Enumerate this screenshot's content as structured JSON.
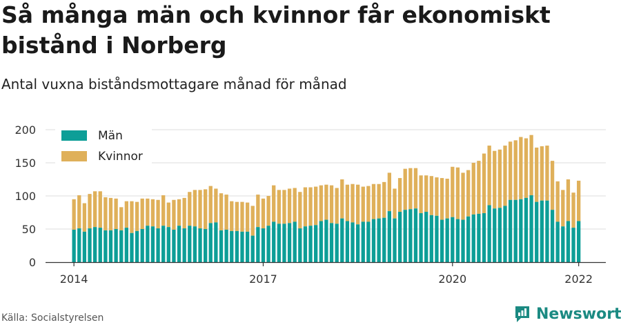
{
  "title": "Så många män och kvinnor får ekonomiskt bistånd i Norberg",
  "subtitle": "Antal vuxna biståndsmottagare månad för månad",
  "source": "Källa: Socialstyrelsen",
  "brand": "Newsworthy",
  "colors": {
    "man": "#0d9e97",
    "kvinnor": "#dfb05a",
    "grid": "#dddddd",
    "axis": "#333333"
  },
  "chart_data": {
    "type": "bar",
    "stacked": true,
    "ylim": [
      0,
      200
    ],
    "yticks": [
      0,
      50,
      100,
      150,
      200
    ],
    "xticks": [
      {
        "label": "2014",
        "index": 0
      },
      {
        "label": "2017",
        "index": 36
      },
      {
        "label": "2020",
        "index": 72
      },
      {
        "label": "2022",
        "index": 96
      }
    ],
    "legend": {
      "position": "top-left",
      "items": [
        "Män",
        "Kvinnor"
      ]
    },
    "categories": [
      "2014-01",
      "2014-02",
      "2014-03",
      "2014-04",
      "2014-05",
      "2014-06",
      "2014-07",
      "2014-08",
      "2014-09",
      "2014-10",
      "2014-11",
      "2014-12",
      "2015-01",
      "2015-02",
      "2015-03",
      "2015-04",
      "2015-05",
      "2015-06",
      "2015-07",
      "2015-08",
      "2015-09",
      "2015-10",
      "2015-11",
      "2015-12",
      "2016-01",
      "2016-02",
      "2016-03",
      "2016-04",
      "2016-05",
      "2016-06",
      "2016-07",
      "2016-08",
      "2016-09",
      "2016-10",
      "2016-11",
      "2016-12",
      "2017-01",
      "2017-02",
      "2017-03",
      "2017-04",
      "2017-05",
      "2017-06",
      "2017-07",
      "2017-08",
      "2017-09",
      "2017-10",
      "2017-11",
      "2017-12",
      "2018-01",
      "2018-02",
      "2018-03",
      "2018-04",
      "2018-05",
      "2018-06",
      "2018-07",
      "2018-08",
      "2018-09",
      "2018-10",
      "2018-11",
      "2018-12",
      "2019-01",
      "2019-02",
      "2019-03",
      "2019-04",
      "2019-05",
      "2019-06",
      "2019-07",
      "2019-08",
      "2019-09",
      "2019-10",
      "2019-11",
      "2019-12",
      "2020-01",
      "2020-02",
      "2020-03",
      "2020-04",
      "2020-05",
      "2020-06",
      "2020-07",
      "2020-08",
      "2020-09",
      "2020-10",
      "2020-11",
      "2020-12",
      "2021-01",
      "2021-02",
      "2021-03",
      "2021-04",
      "2021-05",
      "2021-06",
      "2021-07",
      "2021-08",
      "2021-09",
      "2021-10",
      "2021-11",
      "2021-12",
      "2022-01"
    ],
    "series": [
      {
        "name": "Män",
        "values": [
          49,
          51,
          46,
          51,
          53,
          52,
          48,
          48,
          50,
          48,
          52,
          44,
          47,
          50,
          55,
          54,
          51,
          55,
          53,
          49,
          55,
          51,
          55,
          54,
          51,
          50,
          59,
          60,
          48,
          49,
          47,
          47,
          46,
          46,
          40,
          53,
          51,
          55,
          61,
          58,
          58,
          59,
          61,
          51,
          54,
          55,
          56,
          62,
          64,
          59,
          58,
          66,
          62,
          60,
          57,
          61,
          61,
          65,
          66,
          67,
          77,
          66,
          76,
          79,
          80,
          81,
          74,
          76,
          71,
          70,
          64,
          66,
          68,
          65,
          64,
          69,
          72,
          73,
          74,
          86,
          81,
          82,
          85,
          94,
          94,
          95,
          97,
          101,
          91,
          93,
          93,
          79,
          61,
          54,
          62,
          52,
          62
        ]
      },
      {
        "name": "Kvinnor",
        "values": [
          46,
          50,
          43,
          52,
          54,
          55,
          50,
          49,
          46,
          35,
          40,
          48,
          44,
          46,
          41,
          41,
          43,
          46,
          37,
          45,
          40,
          46,
          51,
          55,
          58,
          60,
          56,
          51,
          56,
          53,
          45,
          44,
          45,
          44,
          45,
          49,
          45,
          45,
          55,
          51,
          51,
          52,
          51,
          55,
          59,
          58,
          58,
          54,
          53,
          57,
          54,
          59,
          55,
          58,
          60,
          53,
          54,
          53,
          52,
          54,
          58,
          45,
          51,
          62,
          62,
          61,
          57,
          55,
          59,
          58,
          63,
          60,
          76,
          78,
          71,
          70,
          78,
          80,
          90,
          90,
          87,
          88,
          91,
          88,
          90,
          94,
          90,
          91,
          82,
          82,
          83,
          74,
          61,
          55,
          63,
          53,
          61
        ]
      }
    ]
  }
}
